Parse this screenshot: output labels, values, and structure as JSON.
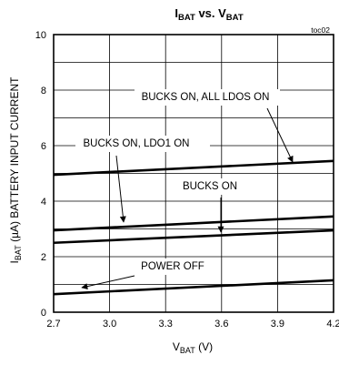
{
  "chart_data": {
    "type": "line",
    "title": {
      "main": "I",
      "sub1": "BAT",
      "mid": " vs. V",
      "sub2": "BAT"
    },
    "corner_label": "toc02",
    "xlabel": {
      "main": "V",
      "sub": "BAT",
      "rest": " (V)"
    },
    "ylabel": {
      "main": "I",
      "sub": "BAT",
      "rest": " (µA) BATTERY INPUT CURRENT"
    },
    "xlim": [
      2.7,
      4.2
    ],
    "ylim": [
      0,
      10
    ],
    "xticks": [
      "2.7",
      "3.0",
      "3.3",
      "3.6",
      "3.9",
      "4.2"
    ],
    "yticks": [
      "0",
      "2",
      "4",
      "6",
      "8",
      "10"
    ],
    "grid": true,
    "series": [
      {
        "name": "BUCKS ON, ALL LDOS ON",
        "x": [
          2.7,
          4.2
        ],
        "y": [
          4.95,
          5.45
        ]
      },
      {
        "name": "BUCKS ON, LDO1 ON",
        "x": [
          2.7,
          4.2
        ],
        "y": [
          2.95,
          3.45
        ]
      },
      {
        "name": "BUCKS ON",
        "x": [
          2.7,
          4.2
        ],
        "y": [
          2.5,
          2.95
        ]
      },
      {
        "name": "POWER OFF",
        "x": [
          2.7,
          4.2
        ],
        "y": [
          0.65,
          1.15
        ]
      }
    ]
  }
}
